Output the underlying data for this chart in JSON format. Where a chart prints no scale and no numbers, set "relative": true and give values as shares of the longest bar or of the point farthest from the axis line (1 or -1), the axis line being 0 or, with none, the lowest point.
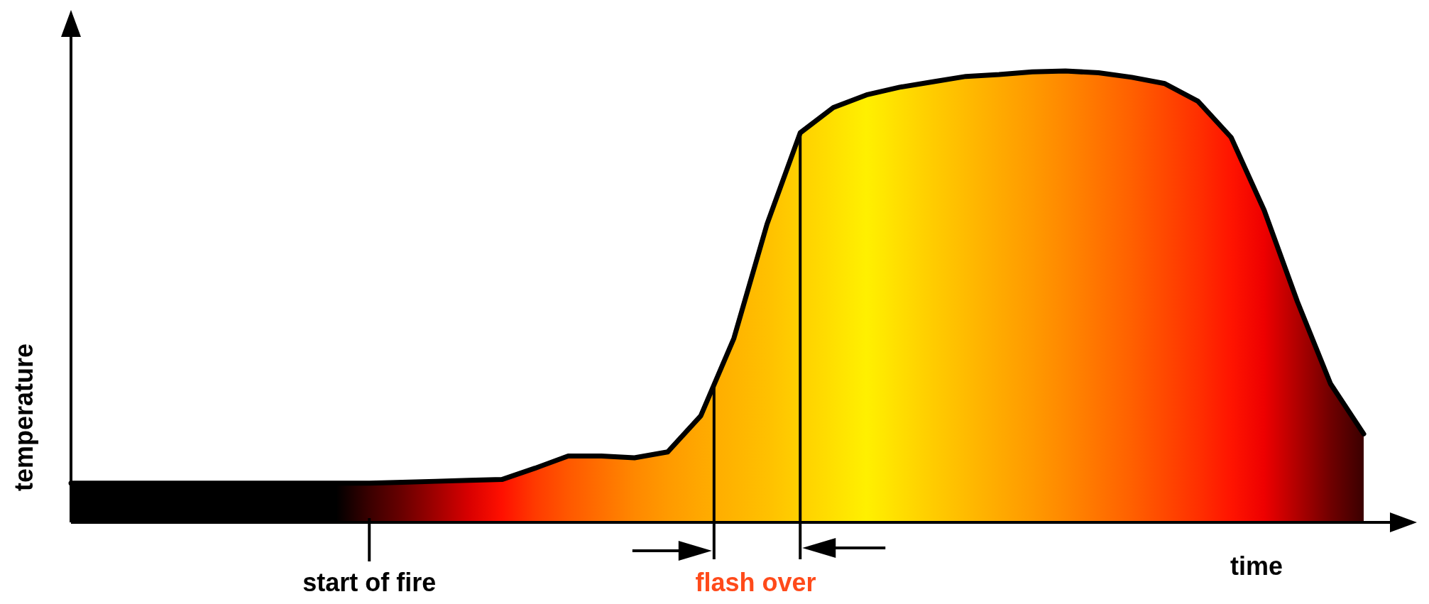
{
  "chart_data": {
    "type": "area",
    "relative": true,
    "xlabel": "time",
    "ylabel": "temperature",
    "categories": [
      null,
      null,
      null,
      null,
      null,
      null,
      null,
      null,
      null,
      null,
      null,
      null,
      null,
      null,
      null,
      null,
      null,
      null,
      null,
      null,
      null,
      null,
      null,
      null,
      null,
      null,
      null,
      null,
      null,
      null,
      null,
      null,
      null,
      null,
      null,
      null,
      null,
      null,
      null,
      null
    ],
    "series": [
      {
        "color": "#000000",
        "values": [
          0.087,
          0.087,
          0.087,
          0.087,
          0.087,
          0.087,
          0.087,
          0.087,
          0.087,
          0.087,
          0.089,
          0.091,
          0.093,
          0.095,
          0.12,
          0.147,
          0.147,
          0.143,
          0.156,
          0.236,
          0.408,
          0.661,
          0.863,
          0.919,
          0.947,
          0.964,
          0.976,
          0.988,
          0.992,
          0.998,
          1,
          0.996,
          0.986,
          0.972,
          0.933,
          0.853,
          0.691,
          0.489,
          0.307,
          0.196
        ],
        "colors": [
          "#000000",
          "#000000",
          "#000000",
          "#000000",
          "#000000",
          "#000000",
          "#000000",
          "#000000",
          "#000000",
          "#3a0000",
          "#6a0000",
          "#a00000",
          "#d80000",
          "#ff1000",
          "#ff3a00",
          "#ff5800",
          "#ff7000",
          "#ff8800",
          "#ff9a00",
          "#ffa800",
          "#ffb400",
          "#ffc000",
          "#ffd000",
          "#ffe000",
          "#fff000",
          "#ffde00",
          "#ffcc00",
          "#ffbb00",
          "#ffaa00",
          "#ff9a00",
          "#ff8800",
          "#ff7400",
          "#ff6000",
          "#ff4800",
          "#ff3000",
          "#ff1400",
          "#ee0000",
          "#b00000",
          "#700000",
          "#3a0000"
        ]
      }
    ],
    "annotations": [
      "start of fire",
      "flash over"
    ]
  }
}
